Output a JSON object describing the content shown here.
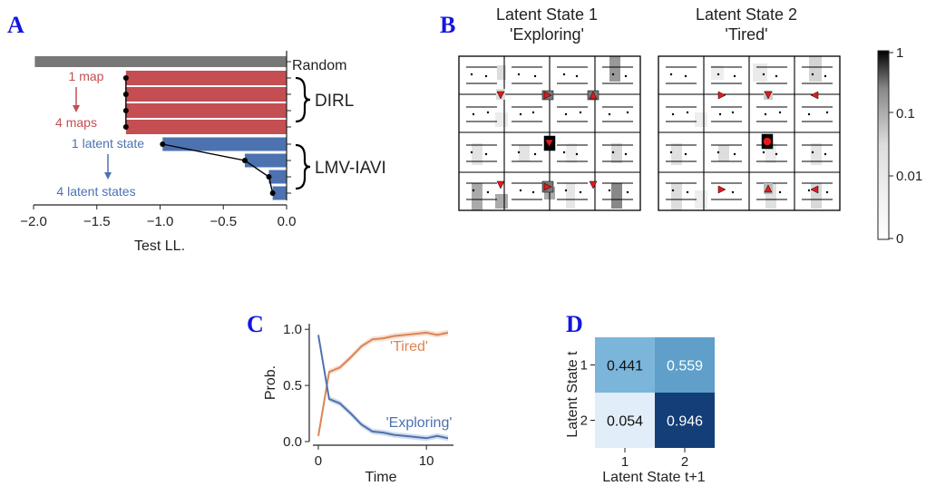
{
  "panels": {
    "a": "A",
    "b": "B",
    "c": "C",
    "d": "D"
  },
  "panel_a": {
    "category_labels": [
      "Random",
      "DIRL",
      "LMV-IAVI"
    ],
    "ann_red_top": "1 map",
    "ann_red_bottom": "4 maps",
    "ann_blue_top": "1 latent state",
    "ann_blue_bottom": "4 latent states",
    "colors": {
      "random": "#777777",
      "dirl": "#c44e52",
      "lmv": "#4c72b0"
    }
  },
  "panel_b": {
    "state1_title_line1": "Latent State 1",
    "state1_title_line2": "'Exploring'",
    "state2_title_line1": "Latent State 2",
    "state2_title_line2": "'Tired'",
    "colorbar_ticks": [
      "1",
      "0.1",
      "0.01",
      "0"
    ]
  },
  "panel_c": {
    "series_label_tired": "'Tired'",
    "series_label_exploring": "'Exploring'",
    "colors": {
      "tired": "#dd8452",
      "exploring": "#4c72b0"
    }
  },
  "panel_d": {
    "cell_texts": [
      "0.441",
      "0.559",
      "0.054",
      "0.946"
    ]
  },
  "chart_data": [
    {
      "type": "bar",
      "orientation": "horizontal",
      "xlabel": "Test LL.",
      "xlim": [
        -2.0,
        0.0
      ],
      "xticks": [
        "−2.0",
        "−1.5",
        "−1.0",
        "−0.5",
        "0.0"
      ],
      "categories": [
        "Random",
        "DIRL 1 map",
        "DIRL 2 maps",
        "DIRL 3 maps",
        "DIRL 4 maps",
        "LMV-IAVI 1 latent state",
        "LMV-IAVI 2 latent states",
        "LMV-IAVI 3 latent states",
        "LMV-IAVI 4 latent states"
      ],
      "values": [
        -1.99,
        -1.27,
        -1.27,
        -1.27,
        -1.27,
        -0.98,
        -0.33,
        -0.14,
        -0.11
      ]
    },
    {
      "type": "line",
      "xlabel": "Time",
      "ylabel": "Prob.",
      "xlim": [
        -0.5,
        12.5
      ],
      "ylim": [
        0,
        1.05
      ],
      "xticks": [
        "0",
        "10"
      ],
      "yticks": [
        "0.0",
        "0.5",
        "1.0"
      ],
      "x": [
        0,
        1,
        2,
        3,
        4,
        5,
        6,
        7,
        8,
        9,
        10,
        11,
        12
      ],
      "series": [
        {
          "name": "'Tired'",
          "values": [
            0.05,
            0.62,
            0.66,
            0.75,
            0.85,
            0.91,
            0.92,
            0.94,
            0.95,
            0.96,
            0.97,
            0.95,
            0.97
          ]
        },
        {
          "name": "'Exploring'",
          "values": [
            0.95,
            0.38,
            0.34,
            0.25,
            0.15,
            0.09,
            0.08,
            0.06,
            0.05,
            0.04,
            0.03,
            0.05,
            0.03
          ]
        }
      ]
    },
    {
      "type": "heatmap",
      "xlabel": "Latent State t+1",
      "ylabel": "Latent State t",
      "x_categories": [
        "1",
        "2"
      ],
      "y_categories": [
        "1",
        "2"
      ],
      "values": [
        [
          0.441,
          0.559
        ],
        [
          0.054,
          0.946
        ]
      ]
    }
  ]
}
